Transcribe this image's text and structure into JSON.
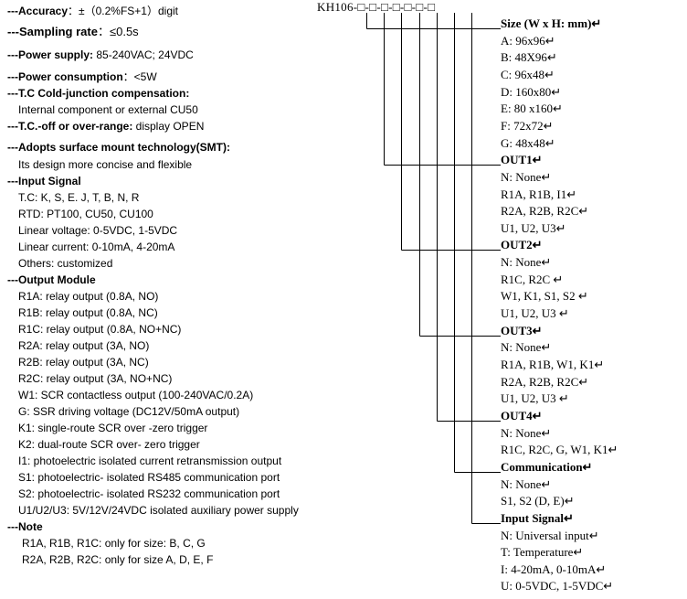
{
  "left": [
    {
      "label": "---Accuracy",
      "value": "：±（0.2%FS+1）digit"
    },
    {
      "label": "---Sampling rate",
      "value": "：≤0.5s"
    },
    {
      "label": "---Power supply:",
      "value": " 85-240VAC; 24VDC"
    },
    {
      "label": "---Power consumption",
      "value": "：<5W"
    },
    {
      "label": "---T.C Cold-junction compensation:"
    },
    {
      "value": "Internal component or external CU50"
    },
    {
      "label": "---T.C.-off or over-range:",
      "value": " display OPEN"
    },
    {
      "label": "---Adopts surface mount technology(SMT):"
    },
    {
      "value": "Its design more concise and flexible"
    },
    {
      "label": "---Input Signal"
    },
    {
      "value": "T.C: K, S, E. J, T, B, N, R"
    },
    {
      "value": "RTD: PT100, CU50, CU100"
    },
    {
      "value": "Linear voltage: 0-5VDC, 1-5VDC"
    },
    {
      "value": "Linear current: 0-10mA, 4-20mA"
    },
    {
      "value": "Others: customized"
    },
    {
      "label": "---Output Module"
    },
    {
      "value": "R1A: relay output (0.8A, NO)"
    },
    {
      "value": "R1B: relay output (0.8A, NC)"
    },
    {
      "value": "R1C: relay output (0.8A, NO+NC)"
    },
    {
      "value": "R2A: relay output (3A, NO)"
    },
    {
      "value": "R2B: relay output (3A, NC)"
    },
    {
      "value": "R2C: relay output (3A, NO+NC)"
    },
    {
      "value": "W1: SCR contactless output (100-240VAC/0.2A)"
    },
    {
      "value": "G: SSR driving voltage (DC12V/50mA output)"
    },
    {
      "value": "K1: single-route SCR over -zero trigger"
    },
    {
      "value": "K2: dual-route SCR over- zero trigger"
    },
    {
      "value": "I1: photoelectric isolated current retransmission output"
    },
    {
      "value": "S1: photoelectric- isolated RS485 communication port"
    },
    {
      "value": "S2: photoelectric- isolated RS232 communication port"
    },
    {
      "value": "U1/U2/U3: 5V/12V/24VDC isolated auxiliary power supply"
    },
    {
      "label": "---Note"
    },
    {
      "value": "R1A, R1B, R1C: only for size: B, C, G"
    },
    {
      "value": "R2A, R2B, R2C: only for size A, D, E, F"
    }
  ],
  "code": "KH106-□-□-□-□-□-□-□",
  "groups": [
    {
      "heading": "Size (W x H: mm)↵",
      "items": [
        "A: 96x96↵",
        "B: 48X96↵",
        "C: 96x48↵",
        "D: 160x80↵",
        "E: 80 x160↵",
        "F: 72x72↵",
        "G: 48x48↵"
      ]
    },
    {
      "heading": "OUT1↵",
      "items": [
        "N: None↵",
        "R1A, R1B, I1↵",
        "R2A, R2B, R2C↵",
        "U1, U2, U3↵"
      ]
    },
    {
      "heading": "OUT2↵",
      "items": [
        "N: None↵",
        "R1C, R2C ↵",
        "W1, K1, S1, S2 ↵",
        "U1, U2, U3 ↵"
      ]
    },
    {
      "heading": "OUT3↵",
      "items": [
        "N: None↵",
        "R1A, R1B, W1, K1↵",
        "R2A, R2B, R2C↵",
        "U1, U2, U3 ↵"
      ]
    },
    {
      "heading": "OUT4↵",
      "items": [
        "N: None↵",
        "R1C, R2C, G, W1, K1↵"
      ]
    },
    {
      "heading": "Communication↵",
      "items": [
        "N: None↵",
        "S1, S2 (D, E)↵"
      ]
    },
    {
      "heading": "Input Signal↵",
      "items": [
        "N: Universal input↵",
        "T: Temperature↵",
        "I: 4-20mA, 0-10mA↵",
        "U: 0-5VDC, 1-5VDC↵"
      ]
    }
  ]
}
